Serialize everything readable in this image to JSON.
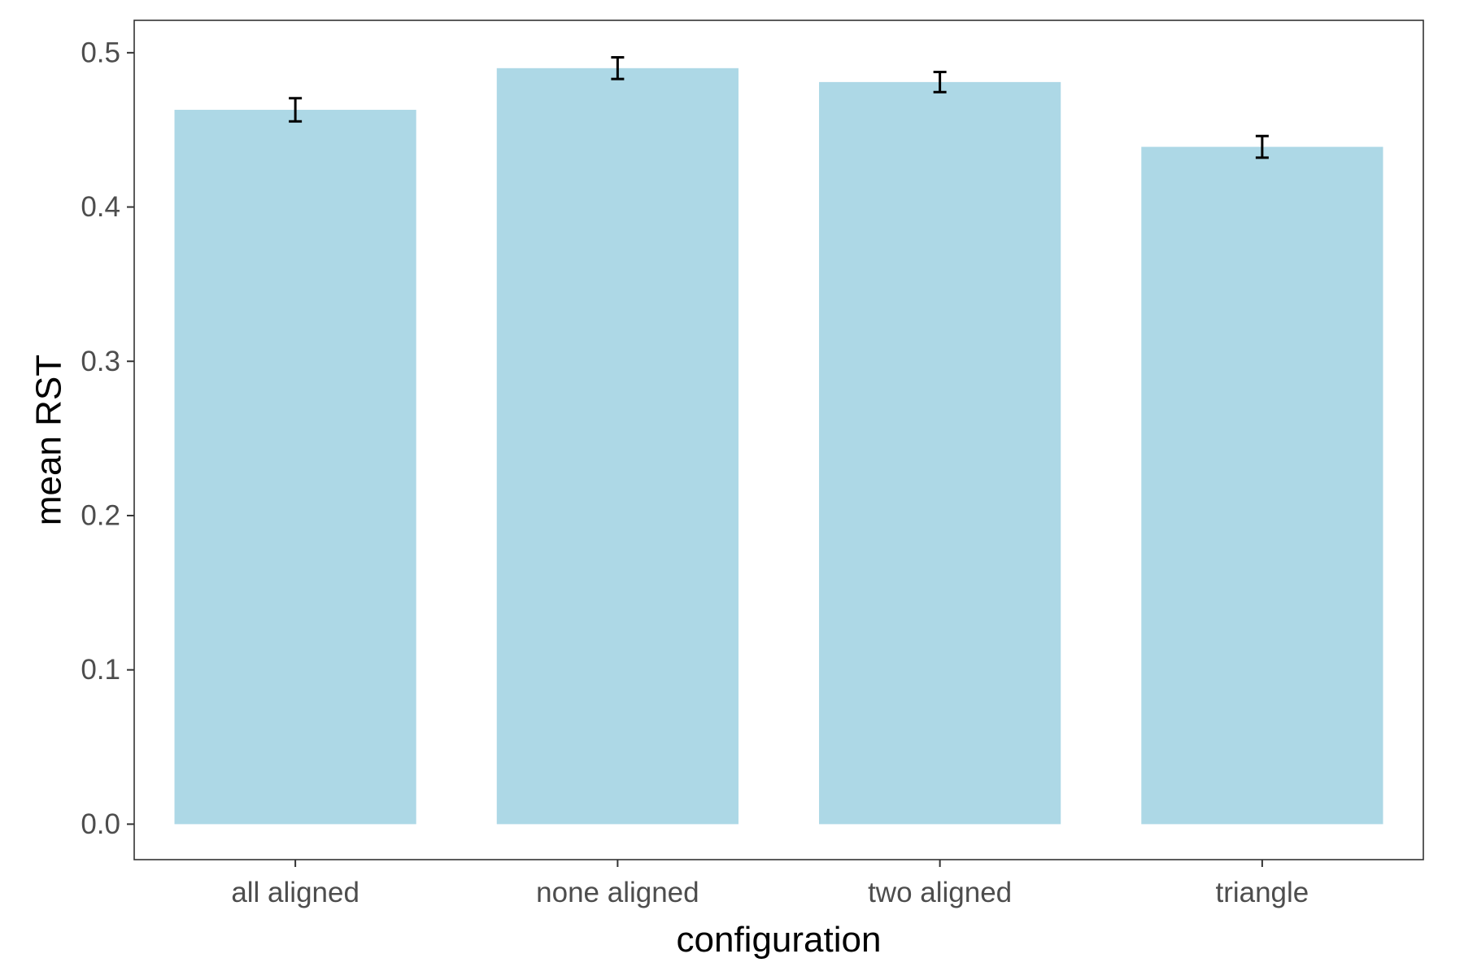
{
  "chart_data": {
    "type": "bar",
    "title": "",
    "xlabel": "configuration",
    "ylabel": "mean RST",
    "categories": [
      "all aligned",
      "none aligned",
      "two aligned",
      "triangle"
    ],
    "values": [
      0.463,
      0.49,
      0.481,
      0.439
    ],
    "errors": [
      0.0075,
      0.007,
      0.0065,
      0.007
    ],
    "ylim": [
      -0.023,
      0.521
    ],
    "yticks": [
      0.0,
      0.1,
      0.2,
      0.3,
      0.4,
      0.5
    ],
    "ytick_labels": [
      "0.0",
      "0.1",
      "0.2",
      "0.3",
      "0.4",
      "0.5"
    ],
    "grid": false,
    "legend": "none",
    "colors": {
      "bar_fill": "#add8e6",
      "error_bar": "#000000",
      "panel_border": "#333333",
      "tick": "#333333",
      "tick_label": "#4d4d4d"
    }
  }
}
